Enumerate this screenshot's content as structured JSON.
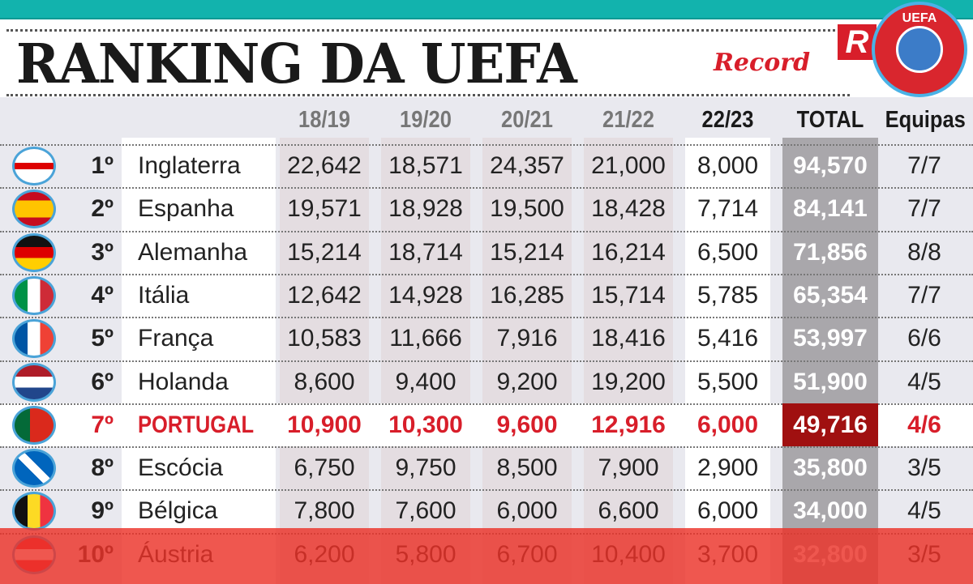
{
  "title": "RANKING DA UEFA",
  "logos": {
    "r": "R",
    "uefa": "UEFA",
    "brand": "Record"
  },
  "columns": [
    "18/19",
    "19/20",
    "20/21",
    "21/22",
    "22/23",
    "TOTAL",
    "Equipas"
  ],
  "colors": {
    "teal": "#12b3ad",
    "highlight": "#d81e2a",
    "total_bg": "#a9a7ab",
    "highlight_total_bg": "#a01010"
  },
  "rows": [
    {
      "rank": "1º",
      "country": "Inglaterra",
      "flag": "england-flag",
      "values": [
        "22,642",
        "18,571",
        "24,357",
        "21,000",
        "8,000"
      ],
      "total": "94,570",
      "teams": "7/7"
    },
    {
      "rank": "2º",
      "country": "Espanha",
      "flag": "spain-flag",
      "values": [
        "19,571",
        "18,928",
        "19,500",
        "18,428",
        "7,714"
      ],
      "total": "84,141",
      "teams": "7/7"
    },
    {
      "rank": "3º",
      "country": "Alemanha",
      "flag": "germany-flag",
      "values": [
        "15,214",
        "18,714",
        "15,214",
        "16,214",
        "6,500"
      ],
      "total": "71,856",
      "teams": "8/8"
    },
    {
      "rank": "4º",
      "country": "Itália",
      "flag": "italy-flag",
      "values": [
        "12,642",
        "14,928",
        "16,285",
        "15,714",
        "5,785"
      ],
      "total": "65,354",
      "teams": "7/7"
    },
    {
      "rank": "5º",
      "country": "França",
      "flag": "france-flag",
      "values": [
        "10,583",
        "11,666",
        "7,916",
        "18,416",
        "5,416"
      ],
      "total": "53,997",
      "teams": "6/6"
    },
    {
      "rank": "6º",
      "country": "Holanda",
      "flag": "netherlands-flag",
      "values": [
        "8,600",
        "9,400",
        "9,200",
        "19,200",
        "5,500"
      ],
      "total": "51,900",
      "teams": "4/5"
    },
    {
      "rank": "7º",
      "country": "PORTUGAL",
      "flag": "portugal-flag",
      "highlight": true,
      "values": [
        "10,900",
        "10,300",
        "9,600",
        "12,916",
        "6,000"
      ],
      "total": "49,716",
      "teams": "4/6"
    },
    {
      "rank": "8º",
      "country": "Escócia",
      "flag": "scotland-flag",
      "values": [
        "6,750",
        "9,750",
        "8,500",
        "7,900",
        "2,900"
      ],
      "total": "35,800",
      "teams": "3/5"
    },
    {
      "rank": "9º",
      "country": "Bélgica",
      "flag": "belgium-flag",
      "values": [
        "7,800",
        "7,600",
        "6,000",
        "6,600",
        "6,000"
      ],
      "total": "34,000",
      "teams": "4/5"
    },
    {
      "rank": "10º",
      "country": "Áustria",
      "flag": "austria-flag",
      "values": [
        "6,200",
        "5,800",
        "6,700",
        "10,400",
        "3,700"
      ],
      "total": "32,800",
      "teams": "3/5"
    }
  ]
}
